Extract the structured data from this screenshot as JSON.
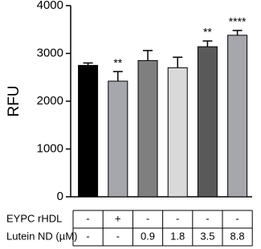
{
  "chart_data": {
    "type": "bar",
    "y_label": "RFU",
    "categories": [
      null,
      null,
      null,
      null,
      null,
      null
    ],
    "values": [
      2750,
      2420,
      2850,
      2700,
      3140,
      3380
    ],
    "errors": [
      50,
      200,
      210,
      220,
      120,
      100
    ],
    "colors": [
      "#000000",
      "#a6a6ad",
      "#7f7f7f",
      "#d9d9d9",
      "#595959",
      "#a6a6ad"
    ],
    "annotations": [
      null,
      "**",
      null,
      null,
      "**",
      "****"
    ],
    "ylim": [
      0,
      4000
    ],
    "yticks": [
      0,
      1000,
      2000,
      3000,
      4000
    ]
  },
  "table": {
    "rows": [
      {
        "label": "EYPC rHDL",
        "cells": [
          "-",
          "+",
          "-",
          "-",
          "-",
          "-"
        ]
      },
      {
        "label": "Lutein ND (µM)",
        "cells": [
          "-",
          "-",
          "0.9",
          "1.8",
          "3.5",
          "8.8"
        ]
      }
    ]
  }
}
